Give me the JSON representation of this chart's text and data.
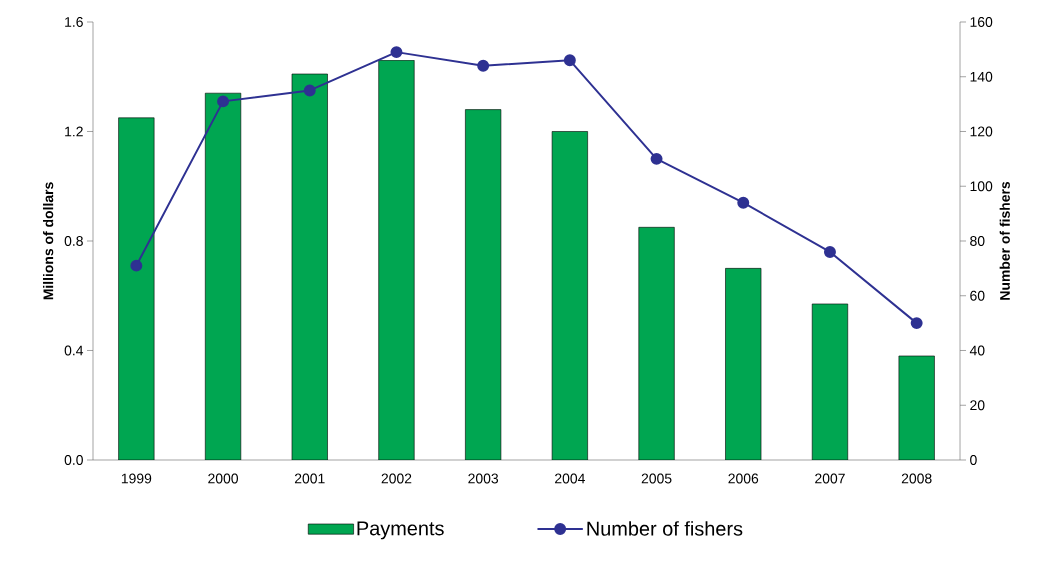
{
  "chart_data": {
    "type": "bar",
    "categories": [
      "1999",
      "2000",
      "2001",
      "2002",
      "2003",
      "2004",
      "2005",
      "2006",
      "2007",
      "2008"
    ],
    "ylabel": "Millions of dollars",
    "y2label": "Number of fishers",
    "ylim": [
      0,
      1.6
    ],
    "yticks": [
      {
        "value": 0,
        "label": "0.0"
      },
      0.4,
      0.8,
      1.2,
      1.6
    ],
    "y2lim": [
      0,
      160
    ],
    "y2ticks": [
      0,
      20,
      40,
      60,
      80,
      100,
      120,
      140,
      160
    ],
    "legend": "bottom",
    "series": [
      {
        "name": "Payments",
        "color": "#00a651",
        "values": [
          1.25,
          1.34,
          1.41,
          1.46,
          1.28,
          1.2,
          0.85,
          0.7,
          0.57,
          0.38
        ]
      },
      {
        "name": "Number of fishers",
        "type": "line",
        "axis": "y2",
        "color": "#2e3192",
        "marker": "circle",
        "values": [
          71,
          131,
          135,
          149,
          144,
          146,
          110,
          94,
          76,
          50
        ]
      }
    ]
  }
}
